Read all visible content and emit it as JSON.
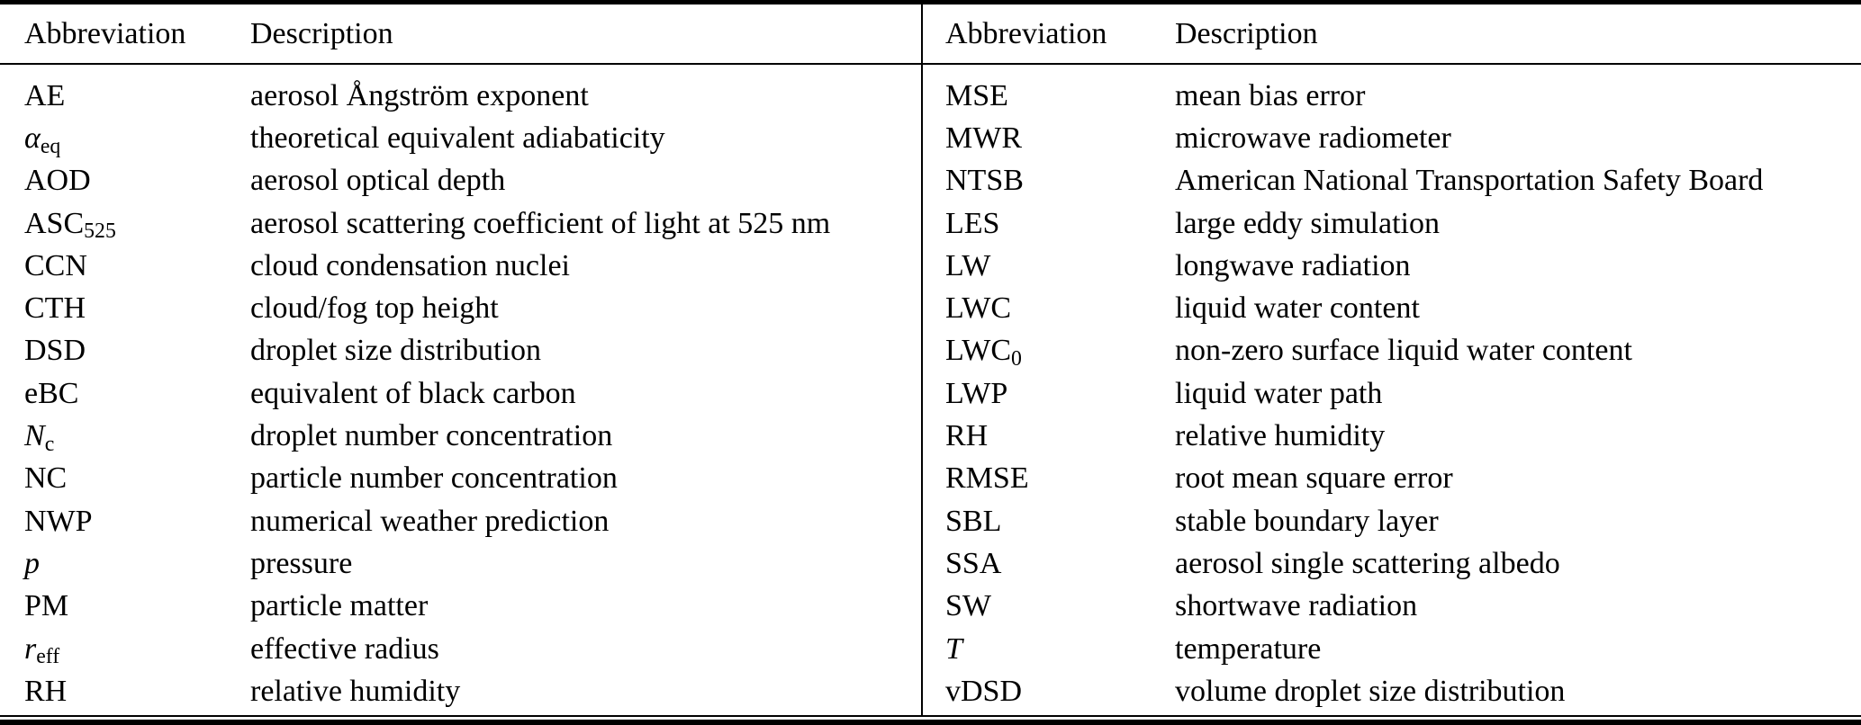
{
  "page": {
    "background_color": "#ffffff",
    "text_color": "#000000"
  },
  "table": {
    "halves": [
      {
        "headers": {
          "abbreviation": "Abbreviation",
          "description": "Description"
        },
        "rows": [
          {
            "abbr": "AE",
            "desc": "aerosol Ångström exponent"
          },
          {
            "abbr": "α",
            "sub": "eq",
            "italic": true,
            "desc": "theoretical equivalent adiabaticity"
          },
          {
            "abbr": "AOD",
            "desc": "aerosol optical depth"
          },
          {
            "abbr": "ASC",
            "sub": "525",
            "desc": "aerosol scattering coefficient of light at 525 nm"
          },
          {
            "abbr": "CCN",
            "desc": "cloud condensation nuclei"
          },
          {
            "abbr": "CTH",
            "desc": "cloud/fog top height"
          },
          {
            "abbr": "DSD",
            "desc": "droplet size distribution"
          },
          {
            "abbr": "eBC",
            "desc": "equivalent of black carbon"
          },
          {
            "abbr": "N",
            "sub": "c",
            "italic": true,
            "desc": "droplet number concentration"
          },
          {
            "abbr": "NC",
            "desc": "particle number concentration"
          },
          {
            "abbr": "NWP",
            "desc": "numerical weather prediction"
          },
          {
            "abbr": "p",
            "italic": true,
            "desc": "pressure"
          },
          {
            "abbr": "PM",
            "desc": "particle matter"
          },
          {
            "abbr": "r",
            "sub": "eff",
            "italic": true,
            "desc": "effective radius"
          },
          {
            "abbr": "RH",
            "desc": "relative humidity"
          }
        ]
      },
      {
        "headers": {
          "abbreviation": "Abbreviation",
          "description": "Description"
        },
        "rows": [
          {
            "abbr": "MSE",
            "desc": "mean bias error"
          },
          {
            "abbr": "MWR",
            "desc": "microwave radiometer"
          },
          {
            "abbr": "NTSB",
            "desc": "American National Transportation Safety Board"
          },
          {
            "abbr": "LES",
            "desc": "large eddy simulation"
          },
          {
            "abbr": "LW",
            "desc": "longwave radiation"
          },
          {
            "abbr": "LWC",
            "desc": "liquid water content"
          },
          {
            "abbr": "LWC",
            "sub": "0",
            "desc": "non-zero surface liquid water content"
          },
          {
            "abbr": "LWP",
            "desc": "liquid water path"
          },
          {
            "abbr": "RH",
            "desc": "relative humidity"
          },
          {
            "abbr": "RMSE",
            "desc": "root mean square error"
          },
          {
            "abbr": "SBL",
            "desc": "stable boundary layer"
          },
          {
            "abbr": "SSA",
            "desc": "aerosol single scattering albedo"
          },
          {
            "abbr": "SW",
            "desc": "shortwave radiation"
          },
          {
            "abbr": "T",
            "italic": true,
            "desc": "temperature"
          },
          {
            "abbr": "vDSD",
            "desc": "volume droplet size distribution"
          }
        ]
      }
    ]
  }
}
